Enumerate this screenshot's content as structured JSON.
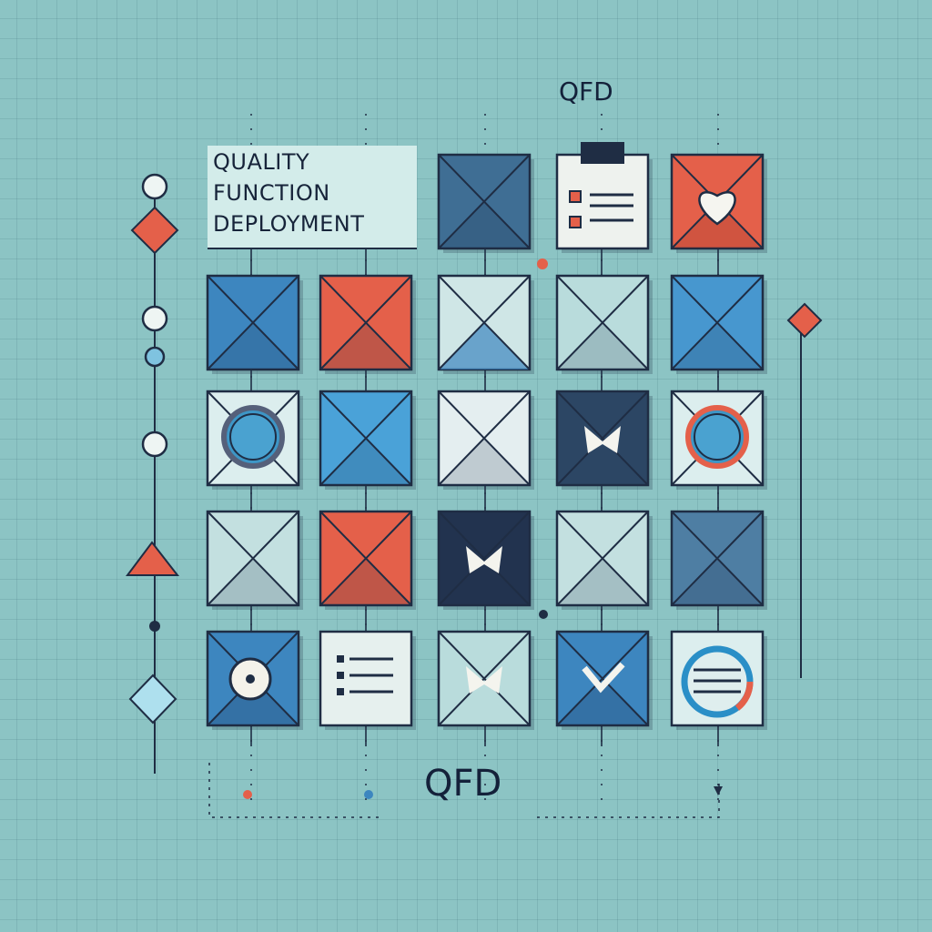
{
  "title": {
    "lines": [
      "QUALITY",
      "FUNCTION",
      "DEPLOYMENT"
    ]
  },
  "labels": {
    "top": "QFD",
    "bottom": "QFD"
  },
  "colors": {
    "background": "#8cc4c4",
    "dark": "#1f2d44",
    "red": "#e4604a",
    "blue": "#3d86bf",
    "light_blue": "#7fc3e0",
    "pale": "#cfe6e6",
    "navy": "#2c4664",
    "steel": "#4e7ea3"
  },
  "tiles": [
    [
      null,
      null,
      {
        "kind": "x",
        "fill": "#3f6e94"
      },
      {
        "kind": "clipboard"
      },
      {
        "kind": "heart",
        "fill": "#e4604a"
      }
    ],
    [
      {
        "kind": "x",
        "fill": "#3d86bf"
      },
      {
        "kind": "x",
        "fill": "#e4604a"
      },
      {
        "kind": "x-split",
        "fill": "#cfe6e6"
      },
      {
        "kind": "x",
        "fill": "#b9dcdc"
      },
      {
        "kind": "x",
        "fill": "#4797cf"
      }
    ],
    [
      {
        "kind": "ring",
        "fill": "#dceeee",
        "ring": "#3d86bf"
      },
      {
        "kind": "x",
        "fill": "#4aa2d8"
      },
      {
        "kind": "x",
        "fill": "#e4eef0"
      },
      {
        "kind": "bow",
        "fill": "#2c4664"
      },
      {
        "kind": "ring",
        "fill": "#dceeee",
        "ring": "#e4604a"
      }
    ],
    [
      {
        "kind": "x",
        "fill": "#c3e0e0"
      },
      {
        "kind": "x",
        "fill": "#e4604a"
      },
      {
        "kind": "bow",
        "fill": "#22334f"
      },
      {
        "kind": "x",
        "fill": "#c3e0e0"
      },
      {
        "kind": "x",
        "fill": "#4e7ea3"
      }
    ],
    [
      {
        "kind": "dot",
        "fill": "#3d86bf"
      },
      {
        "kind": "list",
        "fill": "#e6f0ee"
      },
      {
        "kind": "bow",
        "fill": "#b9dcdc"
      },
      {
        "kind": "check",
        "fill": "#3d86bf"
      },
      {
        "kind": "listring",
        "fill": "#dceeee"
      }
    ]
  ],
  "left_markers": [
    "circle",
    "diamond-red",
    "circle",
    "circle-blue",
    "circle",
    "triangle-red",
    "dot",
    "diamond-blue"
  ],
  "right_markers": [
    "diamond-red"
  ]
}
